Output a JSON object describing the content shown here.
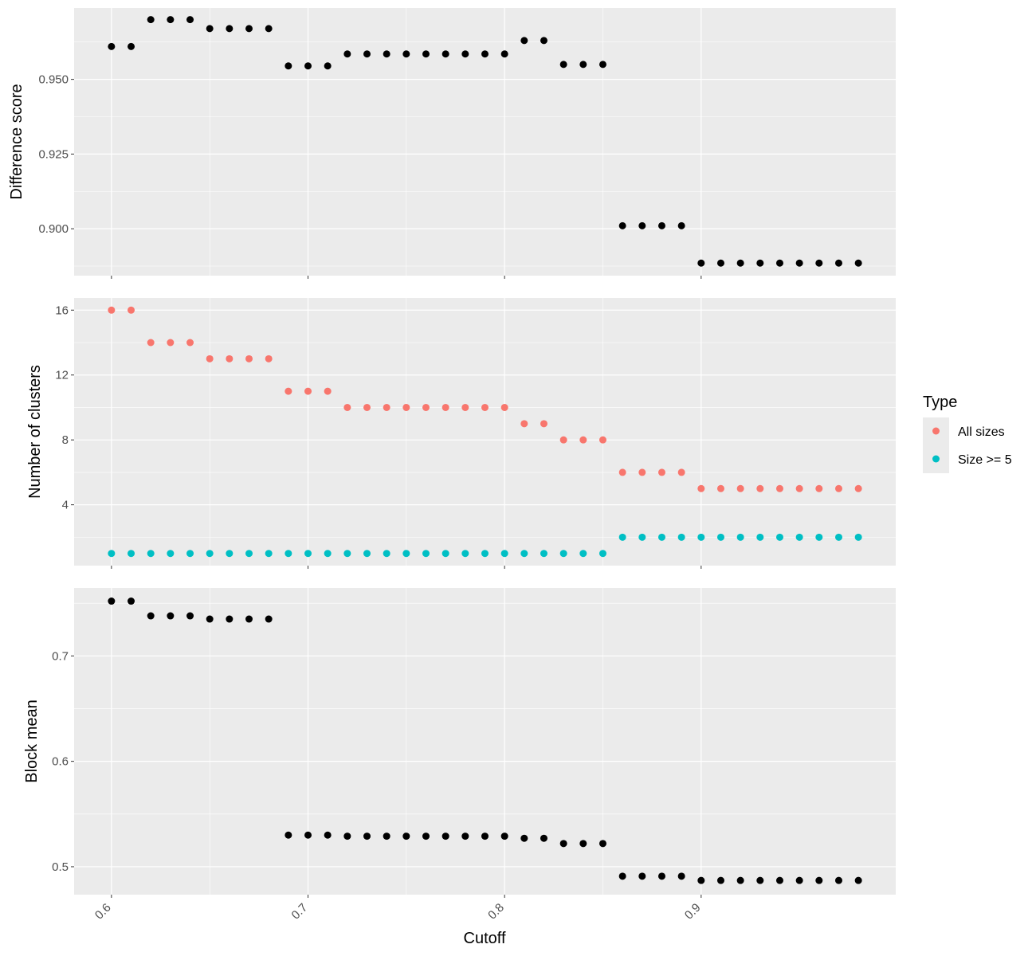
{
  "chart_data": {
    "type": "scatter",
    "xlabel": "Cutoff",
    "x_ticks": [
      "0.6",
      "0.7",
      "0.8",
      "0.9"
    ],
    "x": [
      0.6,
      0.61,
      0.62,
      0.63,
      0.64,
      0.65,
      0.66,
      0.67,
      0.68,
      0.69,
      0.7,
      0.71,
      0.72,
      0.73,
      0.74,
      0.75,
      0.76,
      0.77,
      0.78,
      0.79,
      0.8,
      0.81,
      0.82,
      0.83,
      0.84,
      0.85,
      0.86,
      0.87,
      0.88,
      0.89,
      0.9,
      0.91,
      0.92,
      0.93,
      0.94,
      0.95,
      0.96,
      0.97,
      0.98
    ],
    "xlim": [
      0.581,
      0.999
    ],
    "grid": true,
    "panels": [
      {
        "ylabel": "Difference score",
        "ylim": [
          0.8843,
          0.9739
        ],
        "y_ticks": [
          "0.900",
          "0.925",
          "0.950"
        ],
        "series": [
          {
            "color": "#000000",
            "values": [
              0.961,
              0.961,
              0.97,
              0.97,
              0.97,
              0.967,
              0.967,
              0.967,
              0.967,
              0.9545,
              0.9545,
              0.9545,
              0.9585,
              0.9585,
              0.9585,
              0.9585,
              0.9585,
              0.9585,
              0.9585,
              0.9585,
              0.9585,
              0.963,
              0.963,
              0.955,
              0.955,
              0.955,
              0.901,
              0.901,
              0.901,
              0.901,
              0.8885,
              0.8885,
              0.8885,
              0.8885,
              0.8885,
              0.8885,
              0.8885,
              0.8885,
              0.8885
            ]
          }
        ]
      },
      {
        "ylabel": "Number of clusters",
        "ylim": [
          0.25,
          16.75
        ],
        "y_ticks": [
          "4",
          "8",
          "12",
          "16"
        ],
        "series": [
          {
            "name": "All sizes",
            "color": "#F8766D",
            "values": [
              16,
              16,
              14,
              14,
              14,
              13,
              13,
              13,
              13,
              11,
              11,
              11,
              10,
              10,
              10,
              10,
              10,
              10,
              10,
              10,
              10,
              9,
              9,
              8,
              8,
              8,
              6,
              6,
              6,
              6,
              5,
              5,
              5,
              5,
              5,
              5,
              5,
              5,
              5
            ]
          },
          {
            "name": "Size >= 5",
            "color": "#00BFC4",
            "values": [
              1,
              1,
              1,
              1,
              1,
              1,
              1,
              1,
              1,
              1,
              1,
              1,
              1,
              1,
              1,
              1,
              1,
              1,
              1,
              1,
              1,
              1,
              1,
              1,
              1,
              1,
              2,
              2,
              2,
              2,
              2,
              2,
              2,
              2,
              2,
              2,
              2,
              2,
              2
            ]
          }
        ]
      },
      {
        "ylabel": "Block mean",
        "ylim": [
          0.4735,
          0.7645
        ],
        "y_ticks": [
          "0.5",
          "0.6",
          "0.7"
        ],
        "series": [
          {
            "color": "#000000",
            "values": [
              0.752,
              0.752,
              0.738,
              0.738,
              0.738,
              0.735,
              0.735,
              0.735,
              0.735,
              0.53,
              0.53,
              0.53,
              0.529,
              0.529,
              0.529,
              0.529,
              0.529,
              0.529,
              0.529,
              0.529,
              0.529,
              0.527,
              0.527,
              0.522,
              0.522,
              0.522,
              0.491,
              0.491,
              0.491,
              0.491,
              0.487,
              0.487,
              0.487,
              0.487,
              0.487,
              0.487,
              0.487,
              0.487,
              0.487
            ]
          }
        ]
      }
    ],
    "legend": {
      "title": "Type",
      "placement": "right",
      "entries": [
        {
          "label": "All sizes",
          "color": "#F8766D"
        },
        {
          "label": "Size >= 5",
          "color": "#00BFC4"
        }
      ]
    }
  }
}
